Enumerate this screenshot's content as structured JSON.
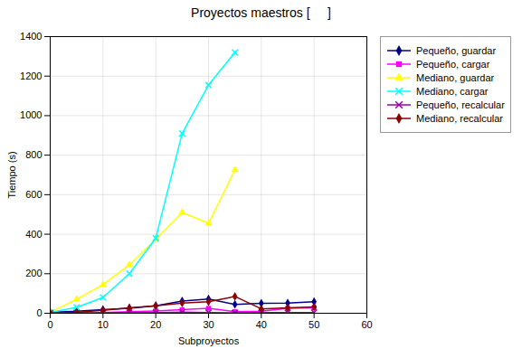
{
  "chart_data": {
    "type": "line",
    "title": "Proyectos maestros [     ]",
    "xlabel": "Subproyectos",
    "ylabel": "Tiempo (s)",
    "xlim": [
      0,
      60
    ],
    "ylim": [
      0,
      1400
    ],
    "xticks": [
      0,
      10,
      20,
      30,
      40,
      50,
      60
    ],
    "yticks": [
      0,
      200,
      400,
      600,
      800,
      1000,
      1200,
      1400
    ],
    "grid": true,
    "legend": "right",
    "series": [
      {
        "name": "Pequeño, guardar",
        "color": "#00008B",
        "marker": "diamond",
        "x": [
          0,
          5,
          10,
          15,
          20,
          25,
          30,
          35,
          40,
          45,
          50
        ],
        "values": [
          5,
          10,
          18,
          25,
          38,
          62,
          72,
          45,
          50,
          52,
          58
        ]
      },
      {
        "name": "Pequeño, cargar",
        "color": "#FF00FF",
        "marker": "square",
        "x": [
          0,
          5,
          10,
          15,
          20,
          25,
          30,
          35,
          40,
          45,
          50
        ],
        "values": [
          0,
          2,
          4,
          8,
          12,
          18,
          25,
          8,
          10,
          25,
          28
        ]
      },
      {
        "name": "Mediano, guardar",
        "color": "#FFFF00",
        "marker": "triangle",
        "x": [
          0,
          5,
          10,
          15,
          20,
          25,
          30,
          35
        ],
        "values": [
          5,
          70,
          145,
          245,
          375,
          510,
          455,
          725
        ]
      },
      {
        "name": "Mediano, cargar",
        "color": "#00FFFF",
        "marker": "x",
        "x": [
          0,
          5,
          10,
          15,
          20,
          25,
          30,
          35
        ],
        "values": [
          5,
          30,
          80,
          200,
          380,
          910,
          1155,
          1320
        ]
      },
      {
        "name": "Pequeño, recalcular",
        "color": "#9900AA",
        "marker": "x",
        "x": [
          0,
          5,
          10,
          15,
          20,
          25,
          30,
          35,
          40,
          45,
          50
        ],
        "values": [
          0,
          1,
          2,
          4,
          4,
          6,
          4,
          2,
          3,
          3,
          4
        ]
      },
      {
        "name": "Mediano, recalcular",
        "color": "#8B0000",
        "marker": "diamond",
        "x": [
          0,
          5,
          10,
          15,
          20,
          25,
          30,
          35,
          40,
          45,
          50
        ],
        "values": [
          0,
          5,
          15,
          28,
          38,
          52,
          58,
          85,
          22,
          28,
          32
        ]
      }
    ]
  }
}
